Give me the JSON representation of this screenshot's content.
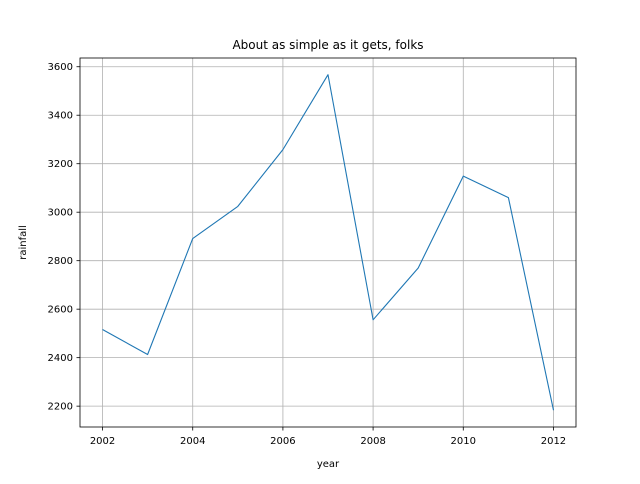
{
  "chart_data": {
    "type": "line",
    "title": "About as simple as it gets, folks",
    "xlabel": "year",
    "ylabel": "rainfall",
    "x": [
      2002,
      2003,
      2004,
      2005,
      2006,
      2007,
      2008,
      2009,
      2010,
      2011,
      2012
    ],
    "series": [
      {
        "values": [
          2516,
          2413,
          2891,
          3024,
          3258,
          3567,
          2556,
          2770,
          3149,
          3060,
          2183
        ],
        "color": "#1f77b4"
      }
    ],
    "xlim": [
      2001.5,
      2012.5
    ],
    "ylim": [
      2114,
      3636
    ],
    "xticks": [
      2002,
      2004,
      2006,
      2008,
      2010,
      2012
    ],
    "yticks": [
      2200,
      2400,
      2600,
      2800,
      3000,
      3200,
      3400,
      3600
    ],
    "grid": true,
    "legend": "none"
  }
}
